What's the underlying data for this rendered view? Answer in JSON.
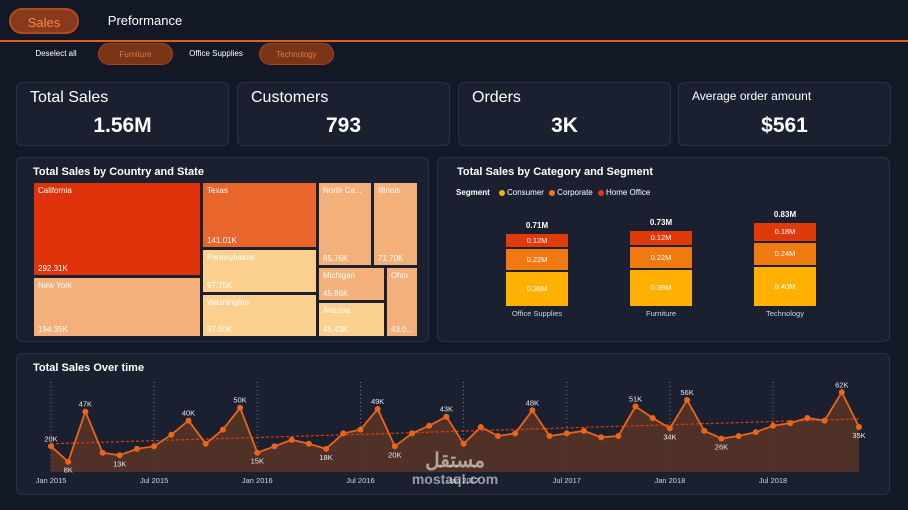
{
  "tabs": [
    {
      "label": "Sales"
    },
    {
      "label": "Preformance"
    }
  ],
  "filters": [
    {
      "label": "Deselect all",
      "selected": false
    },
    {
      "label": "Furniture",
      "selected": true
    },
    {
      "label": "Office Supplies",
      "selected": false
    },
    {
      "label": "Technology",
      "selected": true
    }
  ],
  "kpis": [
    {
      "title": "Total Sales",
      "value": "1.56M"
    },
    {
      "title": "Customers",
      "value": "793"
    },
    {
      "title": "Orders",
      "value": "3K"
    },
    {
      "title": "Average order amount",
      "value": "$561"
    }
  ],
  "treemap": {
    "title": "Total Sales by Country and State",
    "cells": [
      {
        "label": "California",
        "value": "292.31K",
        "color": "#e0320a"
      },
      {
        "label": "New York",
        "value": "194.35K",
        "color": "#f4b07a"
      },
      {
        "label": "Texas",
        "value": "141.01K",
        "color": "#e8652c"
      },
      {
        "label": "Pennsylvania",
        "value": "97.75K",
        "color": "#fbd08f"
      },
      {
        "label": "Washington",
        "value": "97.50K",
        "color": "#fbd08f"
      },
      {
        "label": "North Ca...",
        "value": "85.76K",
        "color": "#f4b07a"
      },
      {
        "label": "Illinois",
        "value": "71.70K",
        "color": "#f4b07a"
      },
      {
        "label": "Michigan",
        "value": "45.86K",
        "color": "#f4b07a"
      },
      {
        "label": "Arizona",
        "value": "45.43K",
        "color": "#fbd08f"
      },
      {
        "label": "Ohio",
        "value": "43.0...",
        "color": "#f4b07a"
      }
    ]
  },
  "category": {
    "title": "Total Sales by Category and Segment",
    "legend_title": "Segment",
    "segments": [
      {
        "name": "Consumer",
        "color": "#ffb000"
      },
      {
        "name": "Corporate",
        "color": "#f07a10"
      },
      {
        "name": "Home Office",
        "color": "#e03a0a"
      }
    ],
    "stacks": [
      {
        "category": "Office Supplies",
        "total": "0.71M",
        "values": [
          "0.36M",
          "0.22M",
          "0.12M"
        ]
      },
      {
        "category": "Furniture",
        "total": "0.73M",
        "values": [
          "0.39M",
          "0.22M",
          "0.12M"
        ]
      },
      {
        "category": "Technology",
        "total": "0.83M",
        "values": [
          "0.40M",
          "0.24M",
          "0.18M"
        ]
      }
    ]
  },
  "timeline_title": "Total Sales Over time",
  "watermark": {
    "arabic": "مستقل",
    "latin": "mostaql.com"
  },
  "colors": {
    "accent": "#e0601a",
    "line": "#e8651a",
    "area": "#5a3526",
    "trend": "#e03a0a"
  },
  "chart_data": {
    "type": "line",
    "title": "Total Sales Over time",
    "x_ticks": [
      "Jan 2015",
      "Jul 2015",
      "Jan 2016",
      "Jul 2016",
      "Jan 2017",
      "Jul 2017",
      "Jan 2018",
      "Jul 2018"
    ],
    "x": [
      "2015-01",
      "2015-02",
      "2015-03",
      "2015-04",
      "2015-05",
      "2015-06",
      "2015-07",
      "2015-08",
      "2015-09",
      "2015-10",
      "2015-11",
      "2015-12",
      "2016-01",
      "2016-02",
      "2016-03",
      "2016-04",
      "2016-05",
      "2016-06",
      "2016-07",
      "2016-08",
      "2016-09",
      "2016-10",
      "2016-11",
      "2016-12",
      "2017-01",
      "2017-02",
      "2017-03",
      "2017-04",
      "2017-05",
      "2017-06",
      "2017-07",
      "2017-08",
      "2017-09",
      "2017-10",
      "2017-11",
      "2017-12",
      "2018-01",
      "2018-02",
      "2018-03",
      "2018-04",
      "2018-05",
      "2018-06",
      "2018-07",
      "2018-08",
      "2018-09",
      "2018-10",
      "2018-11",
      "2018-12"
    ],
    "values": [
      20,
      8,
      47,
      15,
      13,
      18,
      20,
      29,
      40,
      22,
      33,
      50,
      15,
      20,
      25,
      22,
      18,
      30,
      33,
      49,
      20,
      30,
      36,
      43,
      22,
      35,
      28,
      30,
      48,
      28,
      30,
      32,
      27,
      28,
      51,
      42,
      34,
      56,
      32,
      26,
      28,
      31,
      36,
      38,
      42,
      40,
      62,
      35
    ],
    "data_labels": [
      {
        "index": 0,
        "text": "20K"
      },
      {
        "index": 1,
        "text": "8K"
      },
      {
        "index": 2,
        "text": "47K"
      },
      {
        "index": 4,
        "text": "13K"
      },
      {
        "index": 8,
        "text": "40K"
      },
      {
        "index": 11,
        "text": "50K"
      },
      {
        "index": 12,
        "text": "15K"
      },
      {
        "index": 16,
        "text": "18K"
      },
      {
        "index": 19,
        "text": "49K"
      },
      {
        "index": 20,
        "text": "20K"
      },
      {
        "index": 23,
        "text": "43K"
      },
      {
        "index": 28,
        "text": "48K"
      },
      {
        "index": 34,
        "text": "51K"
      },
      {
        "index": 36,
        "text": "34K"
      },
      {
        "index": 37,
        "text": "56K"
      },
      {
        "index": 39,
        "text": "26K"
      },
      {
        "index": 46,
        "text": "62K"
      },
      {
        "index": 47,
        "text": "35K"
      }
    ],
    "trendline": true,
    "ylim": [
      0,
      70
    ]
  }
}
